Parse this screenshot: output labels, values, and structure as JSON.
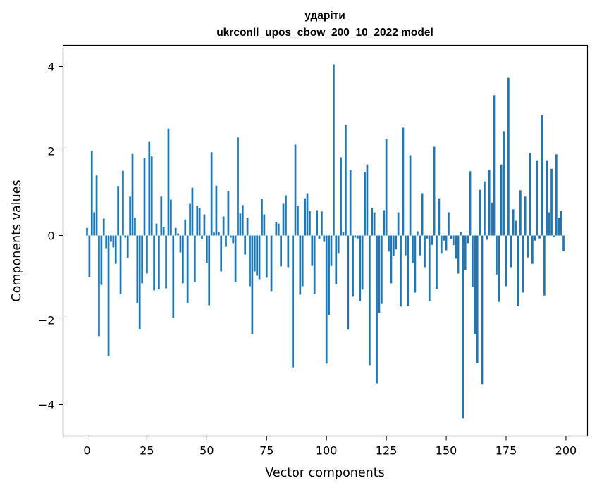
{
  "chart_data": {
    "type": "bar",
    "title": "ударіти",
    "subtitle": "ukrconll_upos_cbow_200_10_2022 model",
    "xlabel": "Vector components",
    "ylabel": "Components values",
    "xlim": [
      -10,
      209
    ],
    "ylim": [
      -4.75,
      4.5
    ],
    "xticks": [
      0,
      25,
      50,
      75,
      100,
      125,
      150,
      175,
      200
    ],
    "yticks": [
      -4,
      -2,
      0,
      2,
      4
    ],
    "xtick_labels": [
      "0",
      "25",
      "50",
      "75",
      "100",
      "125",
      "150",
      "175",
      "200"
    ],
    "ytick_labels": [
      "−4",
      "−2",
      "0",
      "2",
      "4"
    ],
    "grid": false,
    "bar_color": "#1f77b4",
    "x": [
      0,
      1,
      2,
      3,
      4,
      5,
      6,
      7,
      8,
      9,
      10,
      11,
      12,
      13,
      14,
      15,
      16,
      17,
      18,
      19,
      20,
      21,
      22,
      23,
      24,
      25,
      26,
      27,
      28,
      29,
      30,
      31,
      32,
      33,
      34,
      35,
      36,
      37,
      38,
      39,
      40,
      41,
      42,
      43,
      44,
      45,
      46,
      47,
      48,
      49,
      50,
      51,
      52,
      53,
      54,
      55,
      56,
      57,
      58,
      59,
      60,
      61,
      62,
      63,
      64,
      65,
      66,
      67,
      68,
      69,
      70,
      71,
      72,
      73,
      74,
      75,
      76,
      77,
      78,
      79,
      80,
      81,
      82,
      83,
      84,
      85,
      86,
      87,
      88,
      89,
      90,
      91,
      92,
      93,
      94,
      95,
      96,
      97,
      98,
      99,
      100,
      101,
      102,
      103,
      104,
      105,
      106,
      107,
      108,
      109,
      110,
      111,
      112,
      113,
      114,
      115,
      116,
      117,
      118,
      119,
      120,
      121,
      122,
      123,
      124,
      125,
      126,
      127,
      128,
      129,
      130,
      131,
      132,
      133,
      134,
      135,
      136,
      137,
      138,
      139,
      140,
      141,
      142,
      143,
      144,
      145,
      146,
      147,
      148,
      149,
      150,
      151,
      152,
      153,
      154,
      155,
      156,
      157,
      158,
      159,
      160,
      161,
      162,
      163,
      164,
      165,
      166,
      167,
      168,
      169,
      170,
      171,
      172,
      173,
      174,
      175,
      176,
      177,
      178,
      179,
      180,
      181,
      182,
      183,
      184,
      185,
      186,
      187,
      188,
      189,
      190,
      191,
      192,
      193,
      194,
      195,
      196,
      197,
      198,
      199
    ],
    "values": [
      0.18,
      -0.98,
      2.0,
      0.55,
      1.42,
      -2.38,
      -1.17,
      0.4,
      -0.3,
      -2.85,
      -0.15,
      -0.28,
      -0.67,
      1.17,
      -1.38,
      1.53,
      -0.05,
      -0.53,
      0.92,
      1.93,
      0.42,
      -1.6,
      -2.22,
      -1.13,
      1.84,
      -0.9,
      2.23,
      1.87,
      -1.3,
      0.28,
      -1.27,
      0.92,
      0.2,
      -1.25,
      2.53,
      0.85,
      -1.95,
      0.18,
      0.05,
      -0.4,
      -1.13,
      0.38,
      -1.6,
      0.75,
      1.13,
      -1.1,
      0.7,
      0.65,
      -0.08,
      0.5,
      -0.65,
      -1.65,
      1.97,
      0.07,
      1.18,
      0.08,
      -0.85,
      0.45,
      -0.27,
      1.05,
      -0.05,
      -0.18,
      -1.1,
      2.32,
      0.52,
      0.72,
      -0.45,
      0.42,
      -1.2,
      -2.33,
      -0.85,
      -0.95,
      -1.05,
      0.87,
      0.5,
      -1.0,
      0.0,
      -1.33,
      0.0,
      0.32,
      0.28,
      -0.73,
      0.75,
      0.95,
      -0.75,
      0.0,
      -3.12,
      2.15,
      0.7,
      -1.4,
      -1.2,
      0.88,
      1.0,
      0.58,
      -0.72,
      -1.38,
      0.6,
      -0.08,
      0.57,
      -0.15,
      -3.03,
      -1.88,
      -0.72,
      4.05,
      -1.15,
      -0.43,
      1.85,
      0.08,
      2.62,
      -2.23,
      1.55,
      -1.45,
      -0.05,
      -0.07,
      -1.55,
      -1.28,
      1.5,
      1.68,
      -3.08,
      0.65,
      0.55,
      -3.5,
      -1.83,
      -1.62,
      0.6,
      2.28,
      -0.38,
      -1.13,
      -0.48,
      -0.33,
      0.55,
      -1.68,
      2.55,
      -0.47,
      -1.67,
      1.9,
      -0.65,
      -1.35,
      0.1,
      -0.47,
      1.0,
      -0.75,
      -0.07,
      -1.55,
      -0.22,
      2.1,
      -1.27,
      0.88,
      -0.43,
      -0.12,
      -0.35,
      0.55,
      -0.08,
      -0.23,
      -0.55,
      -0.9,
      0.08,
      -4.33,
      -0.82,
      -0.18,
      1.52,
      -1.22,
      -2.33,
      -3.02,
      1.08,
      -3.53,
      1.28,
      -0.1,
      1.55,
      0.78,
      3.32,
      -0.92,
      -1.57,
      1.68,
      2.47,
      -1.2,
      3.73,
      -0.75,
      0.62,
      0.35,
      -1.67,
      1.07,
      -1.35,
      0.92,
      -0.52,
      1.95,
      -0.67,
      -0.12,
      1.78,
      -0.07,
      2.85,
      -1.42,
      1.78,
      0.55,
      1.58,
      -0.03,
      1.92,
      0.42,
      0.58,
      -0.37
    ]
  }
}
